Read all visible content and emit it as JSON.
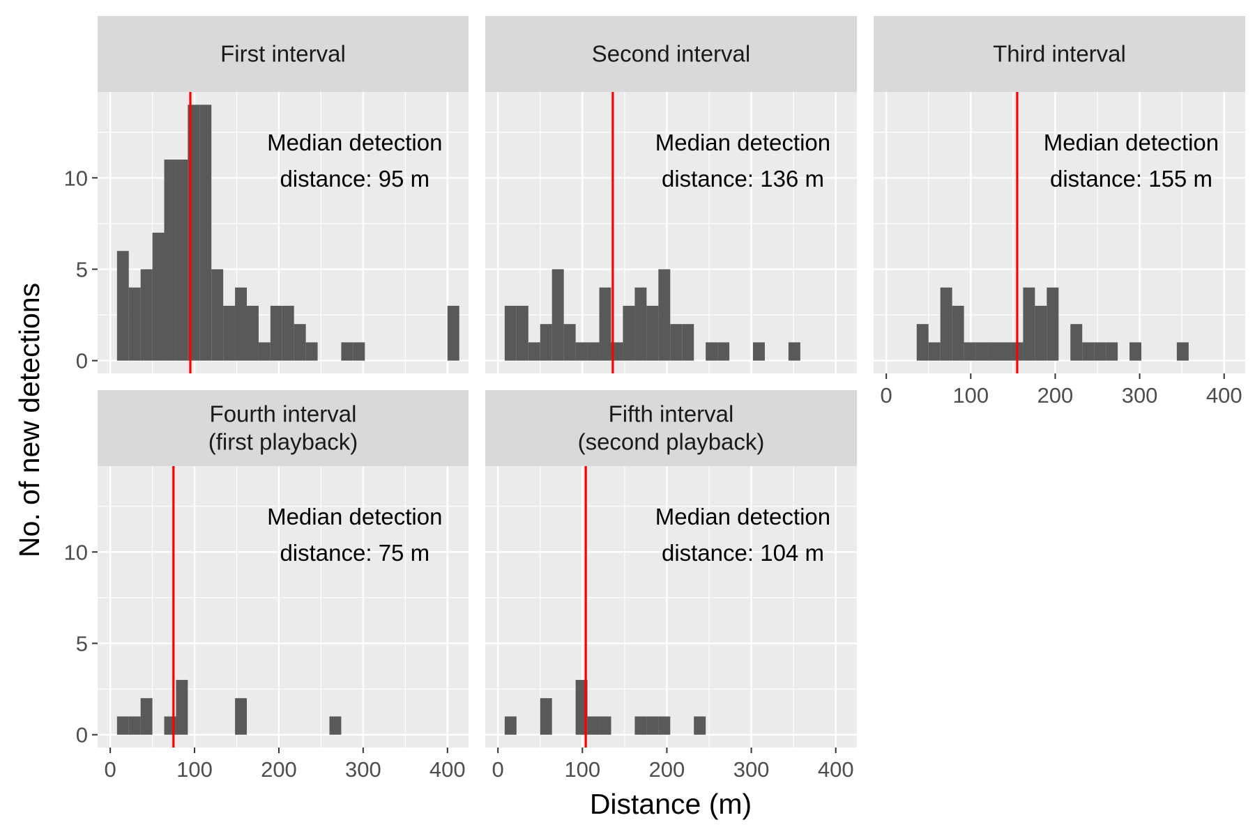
{
  "chart_data": {
    "type": "bar",
    "xlabel": "Distance (m)",
    "ylabel": "No. of new detections",
    "xlim": [
      -15,
      425
    ],
    "ylim": [
      -0.7,
      14.7
    ],
    "bin_width": 14,
    "x_ticks": [
      0,
      100,
      200,
      300,
      400
    ],
    "y_ticks": [
      0,
      5,
      10
    ],
    "x_tick_labels": [
      "0",
      "100",
      "200",
      "300",
      "400"
    ],
    "y_tick_labels": [
      "0",
      "5",
      "10"
    ],
    "grid": true,
    "median_line_color": "#ff0000",
    "bar_color": "#595959",
    "panel_background": "#ebebeb",
    "strip_background": "#d9d9d9",
    "panels": [
      {
        "title_lines": [
          "First interval"
        ],
        "annotation_lines": [
          "Median detection",
          "distance: 95 m"
        ],
        "median": 95,
        "bins": [
          {
            "x": 15,
            "y": 6
          },
          {
            "x": 29,
            "y": 4
          },
          {
            "x": 43,
            "y": 5
          },
          {
            "x": 57,
            "y": 7
          },
          {
            "x": 71,
            "y": 11
          },
          {
            "x": 85,
            "y": 11
          },
          {
            "x": 99,
            "y": 14
          },
          {
            "x": 113,
            "y": 14
          },
          {
            "x": 127,
            "y": 5
          },
          {
            "x": 141,
            "y": 3
          },
          {
            "x": 155,
            "y": 4
          },
          {
            "x": 169,
            "y": 3
          },
          {
            "x": 183,
            "y": 1
          },
          {
            "x": 197,
            "y": 3
          },
          {
            "x": 211,
            "y": 3
          },
          {
            "x": 225,
            "y": 2
          },
          {
            "x": 239,
            "y": 1
          },
          {
            "x": 281,
            "y": 1
          },
          {
            "x": 295,
            "y": 1
          },
          {
            "x": 407,
            "y": 3
          }
        ]
      },
      {
        "title_lines": [
          "Second interval"
        ],
        "annotation_lines": [
          "Median detection",
          "distance: 136 m"
        ],
        "median": 136,
        "bins": [
          {
            "x": 15,
            "y": 3
          },
          {
            "x": 29,
            "y": 3
          },
          {
            "x": 43,
            "y": 1
          },
          {
            "x": 57,
            "y": 2
          },
          {
            "x": 71,
            "y": 5
          },
          {
            "x": 85,
            "y": 2
          },
          {
            "x": 99,
            "y": 1
          },
          {
            "x": 113,
            "y": 1
          },
          {
            "x": 127,
            "y": 4
          },
          {
            "x": 141,
            "y": 1
          },
          {
            "x": 155,
            "y": 3
          },
          {
            "x": 169,
            "y": 4
          },
          {
            "x": 183,
            "y": 3
          },
          {
            "x": 197,
            "y": 5
          },
          {
            "x": 211,
            "y": 2
          },
          {
            "x": 225,
            "y": 2
          },
          {
            "x": 253,
            "y": 1
          },
          {
            "x": 267,
            "y": 1
          },
          {
            "x": 309,
            "y": 1
          },
          {
            "x": 351,
            "y": 1
          }
        ]
      },
      {
        "title_lines": [
          "Third interval"
        ],
        "annotation_lines": [
          "Median detection",
          "distance: 155 m"
        ],
        "median": 155,
        "bins": [
          {
            "x": 43,
            "y": 2
          },
          {
            "x": 57,
            "y": 1
          },
          {
            "x": 71,
            "y": 4
          },
          {
            "x": 85,
            "y": 3
          },
          {
            "x": 99,
            "y": 1
          },
          {
            "x": 113,
            "y": 1
          },
          {
            "x": 127,
            "y": 1
          },
          {
            "x": 141,
            "y": 1
          },
          {
            "x": 155,
            "y": 1
          },
          {
            "x": 169,
            "y": 4
          },
          {
            "x": 183,
            "y": 3
          },
          {
            "x": 197,
            "y": 4
          },
          {
            "x": 225,
            "y": 2
          },
          {
            "x": 239,
            "y": 1
          },
          {
            "x": 253,
            "y": 1
          },
          {
            "x": 267,
            "y": 1
          },
          {
            "x": 295,
            "y": 1
          },
          {
            "x": 351,
            "y": 1
          }
        ]
      },
      {
        "title_lines": [
          "Fourth interval",
          "(first playback)"
        ],
        "annotation_lines": [
          "Median detection",
          "distance: 75 m"
        ],
        "median": 75,
        "bins": [
          {
            "x": 15,
            "y": 1
          },
          {
            "x": 29,
            "y": 1
          },
          {
            "x": 43,
            "y": 2
          },
          {
            "x": 71,
            "y": 1
          },
          {
            "x": 85,
            "y": 3
          },
          {
            "x": 155,
            "y": 2
          },
          {
            "x": 267,
            "y": 1
          }
        ]
      },
      {
        "title_lines": [
          "Fifth interval",
          "(second playback)"
        ],
        "annotation_lines": [
          "Median detection",
          "distance: 104 m"
        ],
        "median": 104,
        "bins": [
          {
            "x": 15,
            "y": 1
          },
          {
            "x": 57,
            "y": 2
          },
          {
            "x": 99,
            "y": 3
          },
          {
            "x": 113,
            "y": 1
          },
          {
            "x": 127,
            "y": 1
          },
          {
            "x": 169,
            "y": 1
          },
          {
            "x": 183,
            "y": 1
          },
          {
            "x": 197,
            "y": 1
          },
          {
            "x": 239,
            "y": 1
          }
        ]
      }
    ]
  }
}
